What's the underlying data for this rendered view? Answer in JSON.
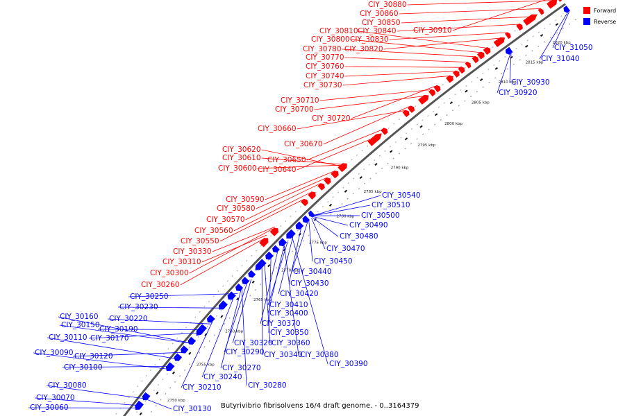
{
  "legend": {
    "forward_label": "Forward",
    "reverse_label": "Reverse",
    "forward_color": "#ff0000",
    "reverse_color": "#0000ff"
  },
  "caption": "Butyrivibrio fibrisolvens 16/4 draft genome. - 0..3164379",
  "scale_ticks": [
    "2750 kbp",
    "2755 kbp",
    "2760 kbp",
    "2765 kbp",
    "2770 kbp",
    "2775 kbp",
    "2780 kbp",
    "2785 kbp",
    "2790 kbp",
    "2795 kbp",
    "2800 kbp",
    "2805 kbp",
    "2810 kbp",
    "2815 kbp",
    "2820 kbp"
  ],
  "forward_genes": [
    "CIY_30260",
    "CIY_30300",
    "CIY_30310",
    "CIY_30330",
    "CIY_30550",
    "CIY_30560",
    "CIY_30570",
    "CIY_30580",
    "CIY_30590",
    "CIY_30600",
    "CIY_30610",
    "CIY_30620",
    "CIY_30640",
    "CIY_30650",
    "CIY_30660",
    "CIY_30670",
    "CIY_30700",
    "CIY_30710",
    "CIY_30720",
    "CIY_30730",
    "CIY_30740",
    "CIY_30760",
    "CIY_30770",
    "CIY_30780",
    "CIY_30800",
    "CIY_30810",
    "CIY_30820",
    "CIY_30830",
    "CIY_30840",
    "CIY_30850",
    "CIY_30860",
    "CIY_30880",
    "CIY_30910"
  ],
  "reverse_genes": [
    "CIY_30060",
    "CIY_30070",
    "CIY_30080",
    "CIY_30090",
    "CIY_30100",
    "CIY_30110",
    "CIY_30120",
    "CIY_30130",
    "CIY_30150",
    "CIY_30160",
    "CIY_30170",
    "CIY_30190",
    "CIY_30210",
    "CIY_30220",
    "CIY_30230",
    "CIY_30240",
    "CIY_30250",
    "CIY_30270",
    "CIY_30280",
    "CIY_30290",
    "CIY_30320",
    "CIY_30340",
    "CIY_30350",
    "CIY_30360",
    "CIY_30370",
    "CIY_30380",
    "CIY_30390",
    "CIY_30400",
    "CIY_30410",
    "CIY_30420",
    "CIY_30430",
    "CIY_30440",
    "CIY_30450",
    "CIY_30470",
    "CIY_30480",
    "CIY_30490",
    "CIY_30500",
    "CIY_30510",
    "CIY_30540",
    "CIY_30920",
    "CIY_30930",
    "CIY_31040",
    "CIY_31050"
  ]
}
